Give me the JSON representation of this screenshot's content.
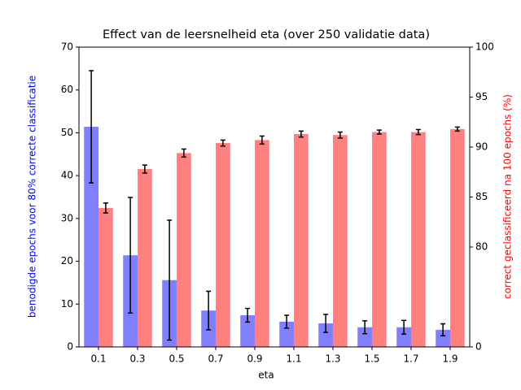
{
  "chart_data": {
    "type": "bar",
    "title": "Effect van de leersnelheid eta (over 250 validatie data)",
    "xlabel": "eta",
    "ylabel": "benodigde epochs voor 80% correcte classificatie",
    "y2label": "correct geclassificeerd na 100 epochs (%)",
    "categories": [
      "0.1",
      "0.3",
      "0.5",
      "0.7",
      "0.9",
      "1.1",
      "1.3",
      "1.5",
      "1.7",
      "1.9"
    ],
    "series": [
      {
        "name": "epochs",
        "color": "#8080ff",
        "axis": "y",
        "values": [
          51.4,
          21.4,
          15.6,
          8.5,
          7.4,
          5.9,
          5.5,
          4.6,
          4.6,
          4.0
        ],
        "errors": [
          13.1,
          13.5,
          14.0,
          4.5,
          1.6,
          1.5,
          2.1,
          1.5,
          1.6,
          1.4
        ]
      },
      {
        "name": "correct",
        "color": "#ff8080",
        "axis": "y2",
        "values": [
          83.9,
          87.8,
          89.4,
          90.4,
          90.7,
          91.3,
          91.2,
          91.5,
          91.5,
          91.8
        ],
        "errors": [
          0.5,
          0.4,
          0.4,
          0.3,
          0.4,
          0.3,
          0.3,
          0.2,
          0.25,
          0.2
        ]
      }
    ],
    "ylim": [
      0,
      70
    ],
    "yticks": [
      0,
      10,
      20,
      30,
      40,
      50,
      60,
      70
    ],
    "y2lim": [
      70,
      100
    ],
    "y2ticks": [
      {
        "value": 70,
        "label": "0"
      },
      80,
      85,
      90,
      95,
      100
    ],
    "ylabel_color": "#0000ff",
    "y2label_color": "#ff0000"
  }
}
